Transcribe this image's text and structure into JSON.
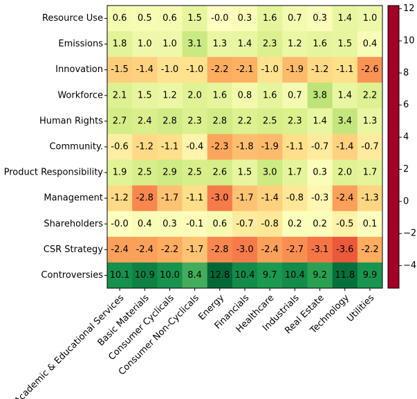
{
  "chart_data": {
    "type": "heatmap",
    "rows": [
      "Resource Use",
      "Emissions",
      "Innovation",
      "Workforce",
      "Human Rights",
      "Community.",
      "Product Responsibility",
      "Management",
      "Shareholders",
      "CSR Strategy",
      "Controversies"
    ],
    "categories": [
      "Academic & Educational Services",
      "Basic Materials",
      "Consumer Cyclicals",
      "Consumer Non-Cyclicals",
      "Energy",
      "Financials",
      "Healthcare",
      "Industrials",
      "Real Estate",
      "Technology",
      "Utilities"
    ],
    "values": [
      [
        0.6,
        0.5,
        0.6,
        1.5,
        -0.0,
        0.3,
        1.6,
        0.7,
        0.3,
        1.4,
        1.0
      ],
      [
        1.8,
        1.0,
        1.0,
        3.1,
        1.3,
        1.4,
        2.3,
        1.2,
        1.6,
        1.5,
        0.4
      ],
      [
        -1.5,
        -1.4,
        -1.0,
        -1.0,
        -2.2,
        -2.1,
        -1.0,
        -1.9,
        -1.2,
        -1.1,
        -2.6
      ],
      [
        2.1,
        1.5,
        1.2,
        2.0,
        1.6,
        0.8,
        1.6,
        0.7,
        3.8,
        1.4,
        2.2
      ],
      [
        2.7,
        2.4,
        2.8,
        2.3,
        2.8,
        2.2,
        2.5,
        2.3,
        1.4,
        3.4,
        1.3
      ],
      [
        -0.6,
        -1.2,
        -1.1,
        -0.4,
        -2.3,
        -1.8,
        -1.9,
        -1.1,
        -0.7,
        -1.4,
        -0.7
      ],
      [
        1.9,
        2.5,
        2.9,
        2.5,
        2.6,
        1.5,
        3.0,
        1.7,
        0.3,
        2.0,
        1.7
      ],
      [
        -1.2,
        -2.8,
        -1.7,
        -1.1,
        -3.0,
        -1.7,
        -1.4,
        -0.8,
        -0.3,
        -2.4,
        -1.3
      ],
      [
        -0.0,
        0.4,
        0.3,
        -0.1,
        0.6,
        -0.7,
        -0.8,
        0.2,
        0.2,
        -0.5,
        0.1
      ],
      [
        -2.4,
        -2.4,
        -2.2,
        -1.7,
        -2.8,
        -3.0,
        -2.4,
        -2.7,
        -3.1,
        -3.6,
        -2.2
      ],
      [
        10.1,
        10.9,
        10.0,
        8.4,
        12.8,
        10.4,
        9.7,
        10.4,
        9.2,
        11.8,
        9.9
      ]
    ],
    "value_labels": [
      [
        "0.6",
        "0.5",
        "0.6",
        "1.5",
        "-0.0",
        "0.3",
        "1.6",
        "0.7",
        "0.3",
        "1.4",
        "1.0"
      ],
      [
        "1.8",
        "1.0",
        "1.0",
        "3.1",
        "1.3",
        "1.4",
        "2.3",
        "1.2",
        "1.6",
        "1.5",
        "0.4"
      ],
      [
        "-1.5",
        "-1.4",
        "-1.0",
        "-1.0",
        "-2.2",
        "-2.1",
        "-1.0",
        "-1.9",
        "-1.2",
        "-1.1",
        "-2.6"
      ],
      [
        "2.1",
        "1.5",
        "1.2",
        "2.0",
        "1.6",
        "0.8",
        "1.6",
        "0.7",
        "3.8",
        "1.4",
        "2.2"
      ],
      [
        "2.7",
        "2.4",
        "2.8",
        "2.3",
        "2.8",
        "2.2",
        "2.5",
        "2.3",
        "1.4",
        "3.4",
        "1.3"
      ],
      [
        "-0.6",
        "-1.2",
        "-1.1",
        "-0.4",
        "-2.3",
        "-1.8",
        "-1.9",
        "-1.1",
        "-0.7",
        "-1.4",
        "-0.7"
      ],
      [
        "1.9",
        "2.5",
        "2.9",
        "2.5",
        "2.6",
        "1.5",
        "3.0",
        "1.7",
        "0.3",
        "2.0",
        "1.7"
      ],
      [
        "-1.2",
        "-2.8",
        "-1.7",
        "-1.1",
        "-3.0",
        "-1.7",
        "-1.4",
        "-0.8",
        "-0.3",
        "-2.4",
        "-1.3"
      ],
      [
        "-0.0",
        "0.4",
        "0.3",
        "-0.1",
        "0.6",
        "-0.7",
        "-0.8",
        "0.2",
        "0.2",
        "-0.5",
        "0.1"
      ],
      [
        "-2.4",
        "-2.4",
        "-2.2",
        "-1.7",
        "-2.8",
        "-3.0",
        "-2.4",
        "-2.7",
        "-3.1",
        "-3.6",
        "-2.2"
      ],
      [
        "10.1",
        "10.9",
        "10.0",
        "8.4",
        "12.8",
        "10.4",
        "9.7",
        "10.4",
        "9.2",
        "11.8",
        "9.9"
      ]
    ],
    "colormap": [
      "#a50026",
      "#d73027",
      "#f46d43",
      "#fdae61",
      "#fee08b",
      "#ffffbf",
      "#d9ef8b",
      "#a6d96a",
      "#66bd63",
      "#1a9850",
      "#006837"
    ],
    "color_center": 0,
    "clim": [
      -5.4,
      12.2
    ],
    "cticks": [
      {
        "value": -4,
        "label": "−4"
      },
      {
        "value": -2,
        "label": "−2"
      },
      0,
      2,
      4,
      6,
      8,
      10,
      12
    ]
  }
}
